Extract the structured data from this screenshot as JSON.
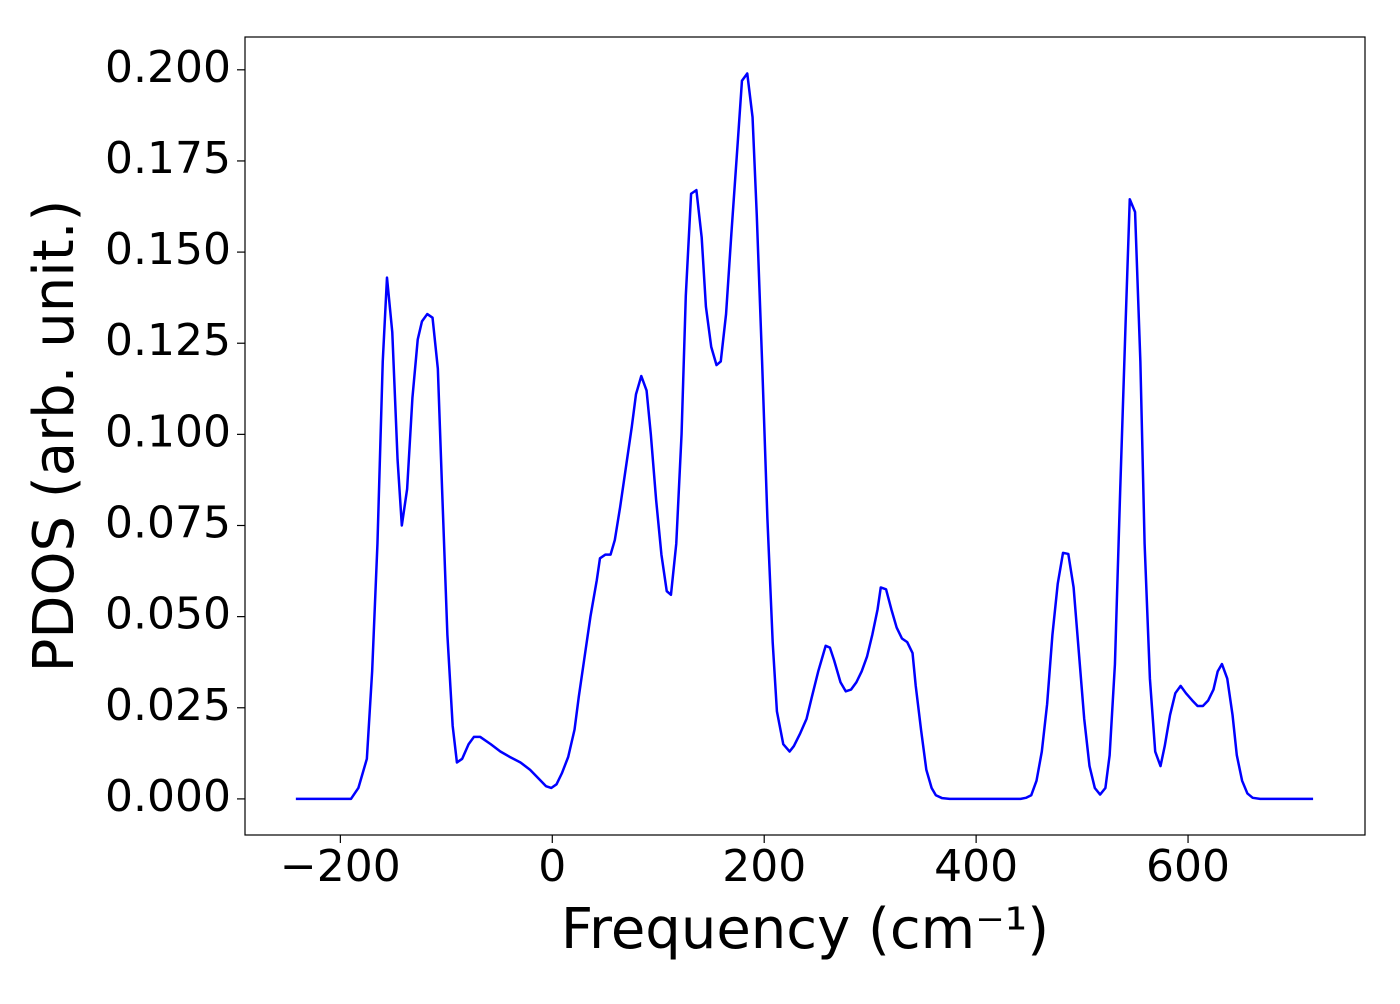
{
  "chart_data": {
    "type": "line",
    "xlabel": "Frequency (cm⁻¹)",
    "ylabel": "PDOS (arb. unit.)",
    "xlim": [
      -290,
      767
    ],
    "ylim": [
      -0.0099,
      0.209
    ],
    "xticks": [
      {
        "value": -200,
        "label": "−200"
      },
      0,
      200,
      400,
      600
    ],
    "yticks": [
      {
        "value": 0,
        "label": "0.000"
      },
      {
        "value": 0.025,
        "label": "0.025"
      },
      {
        "value": 0.05,
        "label": "0.050"
      },
      {
        "value": 0.075,
        "label": "0.075"
      },
      {
        "value": 0.1,
        "label": "0.100"
      },
      {
        "value": 0.125,
        "label": "0.125"
      },
      {
        "value": 0.15,
        "label": "0.150"
      },
      {
        "value": 0.175,
        "label": "0.175"
      },
      {
        "value": 0.2,
        "label": "0.200"
      }
    ],
    "x": [
      -242,
      -190,
      -183,
      -175,
      -170,
      -165,
      -160,
      -156,
      -151,
      -146,
      -142,
      -137,
      -132,
      -127,
      -123,
      -118,
      -113,
      -108,
      -104,
      -99,
      -94,
      -90,
      -85,
      -79,
      -74,
      -68,
      -58,
      -49,
      -40,
      -30,
      -21,
      -11,
      -6,
      -1,
      4,
      9,
      15,
      21,
      25,
      30,
      36,
      42,
      45,
      50,
      55,
      59,
      64,
      70,
      75,
      79,
      84,
      89,
      93,
      98,
      103,
      108,
      112,
      117,
      122,
      126,
      131,
      136,
      141,
      145,
      150,
      155,
      159,
      164,
      169,
      175,
      179,
      184,
      189,
      193,
      198,
      203,
      208,
      212,
      218,
      224,
      228,
      234,
      240,
      245,
      251,
      255,
      258,
      262,
      266,
      272,
      277,
      282,
      287,
      292,
      297,
      302,
      307,
      310,
      315,
      320,
      325,
      330,
      335,
      340,
      343,
      348,
      353,
      358,
      362,
      368,
      375,
      442,
      447,
      452,
      457,
      462,
      467,
      472,
      477,
      482,
      487,
      492,
      497,
      502,
      507,
      512,
      517,
      522,
      526,
      531,
      536,
      541,
      545,
      550,
      555,
      559,
      564,
      569,
      574,
      578,
      583,
      588,
      593,
      598,
      604,
      609,
      614,
      619,
      624,
      628,
      632,
      637,
      642,
      646,
      651,
      656,
      661,
      668,
      718
    ],
    "series": [
      {
        "color": "#0000ff",
        "values": [
          0,
          0,
          0.003,
          0.011,
          0.035,
          0.07,
          0.12,
          0.143,
          0.128,
          0.093,
          0.075,
          0.085,
          0.11,
          0.126,
          0.131,
          0.133,
          0.132,
          0.118,
          0.085,
          0.045,
          0.02,
          0.01,
          0.011,
          0.015,
          0.017,
          0.017,
          0.015,
          0.013,
          0.0115,
          0.01,
          0.008,
          0.005,
          0.0035,
          0.003,
          0.004,
          0.007,
          0.0115,
          0.019,
          0.028,
          0.038,
          0.05,
          0.06,
          0.066,
          0.067,
          0.067,
          0.071,
          0.08,
          0.092,
          0.102,
          0.111,
          0.116,
          0.112,
          0.1,
          0.082,
          0.067,
          0.057,
          0.056,
          0.07,
          0.1,
          0.138,
          0.166,
          0.167,
          0.154,
          0.135,
          0.124,
          0.119,
          0.12,
          0.133,
          0.155,
          0.18,
          0.197,
          0.199,
          0.187,
          0.16,
          0.12,
          0.077,
          0.043,
          0.024,
          0.015,
          0.013,
          0.0145,
          0.018,
          0.022,
          0.028,
          0.035,
          0.039,
          0.042,
          0.0415,
          0.038,
          0.032,
          0.0295,
          0.03,
          0.032,
          0.035,
          0.039,
          0.045,
          0.052,
          0.058,
          0.0575,
          0.052,
          0.047,
          0.044,
          0.043,
          0.04,
          0.031,
          0.019,
          0.008,
          0.003,
          0.001,
          0.0002,
          0,
          0,
          0.0003,
          0.001,
          0.005,
          0.013,
          0.026,
          0.045,
          0.059,
          0.0675,
          0.0672,
          0.058,
          0.04,
          0.022,
          0.009,
          0.003,
          0.0012,
          0.003,
          0.012,
          0.037,
          0.085,
          0.13,
          0.1645,
          0.161,
          0.12,
          0.07,
          0.033,
          0.013,
          0.009,
          0.0145,
          0.023,
          0.029,
          0.031,
          0.029,
          0.027,
          0.0255,
          0.0255,
          0.027,
          0.03,
          0.035,
          0.037,
          0.033,
          0.023,
          0.012,
          0.005,
          0.0015,
          0.0003,
          0,
          0
        ]
      }
    ]
  }
}
